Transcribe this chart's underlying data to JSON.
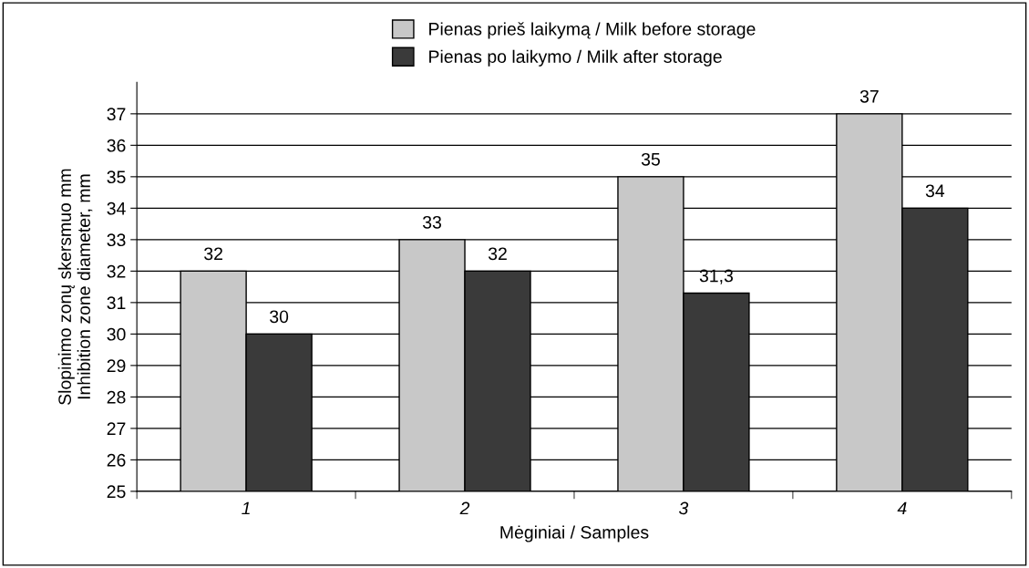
{
  "chart_data": {
    "type": "bar",
    "categories": [
      "1",
      "2",
      "3",
      "4"
    ],
    "series": [
      {
        "name": "Pienas prieš laikymą / Milk before storage",
        "color": "#c8c8c8",
        "values": [
          32,
          33,
          35,
          37
        ],
        "value_labels": [
          "32",
          "33",
          "35",
          "37"
        ]
      },
      {
        "name": "Pienas po laikymo / Milk after storage",
        "color": "#3a3a3a",
        "values": [
          30,
          32,
          31.3,
          34
        ],
        "value_labels": [
          "30",
          "32",
          "31,3",
          "34"
        ]
      }
    ],
    "xlabel": "Mėginiai / Samples",
    "ylabel": "Slopinimo zonų skersmuo mm\nInhibition zone diameter, mm",
    "ylim": [
      25,
      38
    ],
    "yticks": [
      25,
      26,
      27,
      28,
      29,
      30,
      31,
      32,
      33,
      34,
      35,
      36,
      37
    ],
    "grid": "y",
    "legend": "top"
  }
}
